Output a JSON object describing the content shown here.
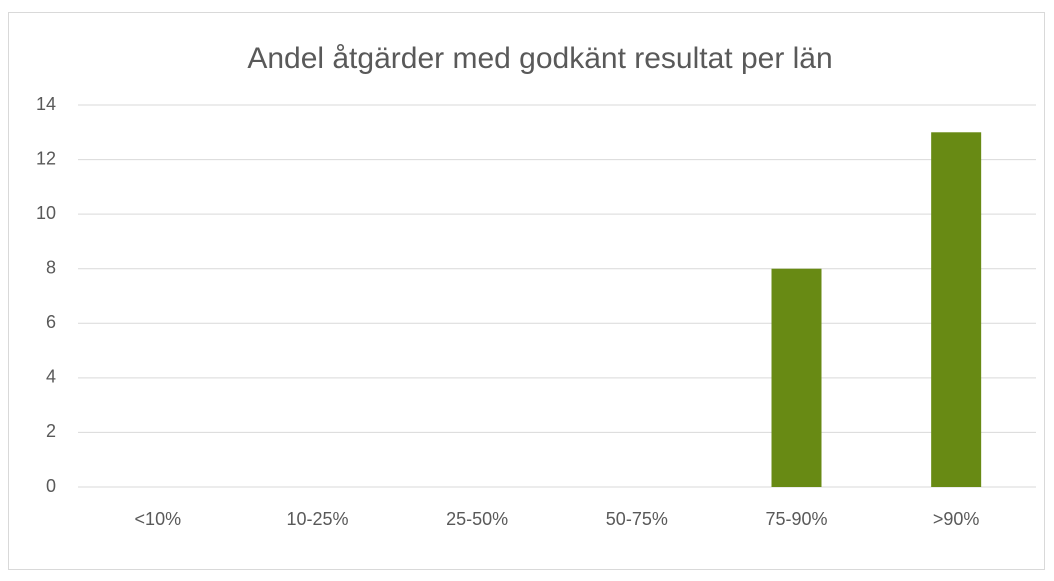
{
  "chart_data": {
    "type": "bar",
    "title": "Andel åtgärder med godkänt resultat per län",
    "categories": [
      "<10%",
      "10-25%",
      "25-50%",
      "50-75%",
      "75-90%",
      ">90%"
    ],
    "values": [
      0,
      0,
      0,
      0,
      8,
      13
    ],
    "color": "#688a14",
    "ylim": [
      0,
      14
    ],
    "yticks": [
      0,
      2,
      4,
      6,
      8,
      10,
      12,
      14
    ],
    "grid": true
  }
}
